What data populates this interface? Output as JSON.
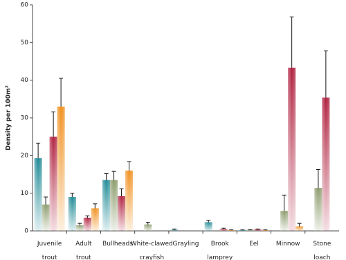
{
  "chart_data": {
    "type": "bar",
    "y_label": "Density per 100m²",
    "categories": [
      "Juvenile trout",
      "Adult trout",
      "Bullheads",
      "White-clawed crayfish",
      "Grayling",
      "Brook lamprey",
      "Eel",
      "Minnow",
      "Stone loach"
    ],
    "series": [
      {
        "color": "#1f8a96",
        "values": [
          19.3,
          9,
          13.5,
          0,
          0.3,
          2.3,
          0.2,
          0,
          0
        ],
        "errors": [
          4,
          1,
          1.7,
          0,
          0.2,
          0.5,
          0.1,
          0,
          0
        ]
      },
      {
        "color": "#8a9a6a",
        "values": [
          7,
          1.5,
          13.5,
          1.7,
          0,
          0,
          0.3,
          5.3,
          11.4
        ],
        "errors": [
          2,
          0.5,
          2.3,
          0.6,
          0,
          0,
          0.1,
          4.2,
          4.9
        ]
      },
      {
        "color": "#b0213f",
        "values": [
          25,
          3.5,
          9.2,
          0,
          0,
          0.5,
          0.4,
          43.3,
          35.4
        ],
        "errors": [
          6.6,
          0.5,
          2,
          0,
          0,
          0.2,
          0.1,
          13.5,
          12.4
        ]
      },
      {
        "color": "#f0901e",
        "values": [
          33,
          6,
          16,
          0,
          0,
          0.2,
          0.2,
          1.2,
          0
        ],
        "errors": [
          7.5,
          1.2,
          2.4,
          0,
          0,
          0.1,
          0.1,
          0.8,
          0
        ]
      }
    ],
    "ylim": [
      0,
      60
    ],
    "yticks": [
      0,
      10,
      20,
      30,
      40,
      50,
      60
    ],
    "grid": false
  }
}
